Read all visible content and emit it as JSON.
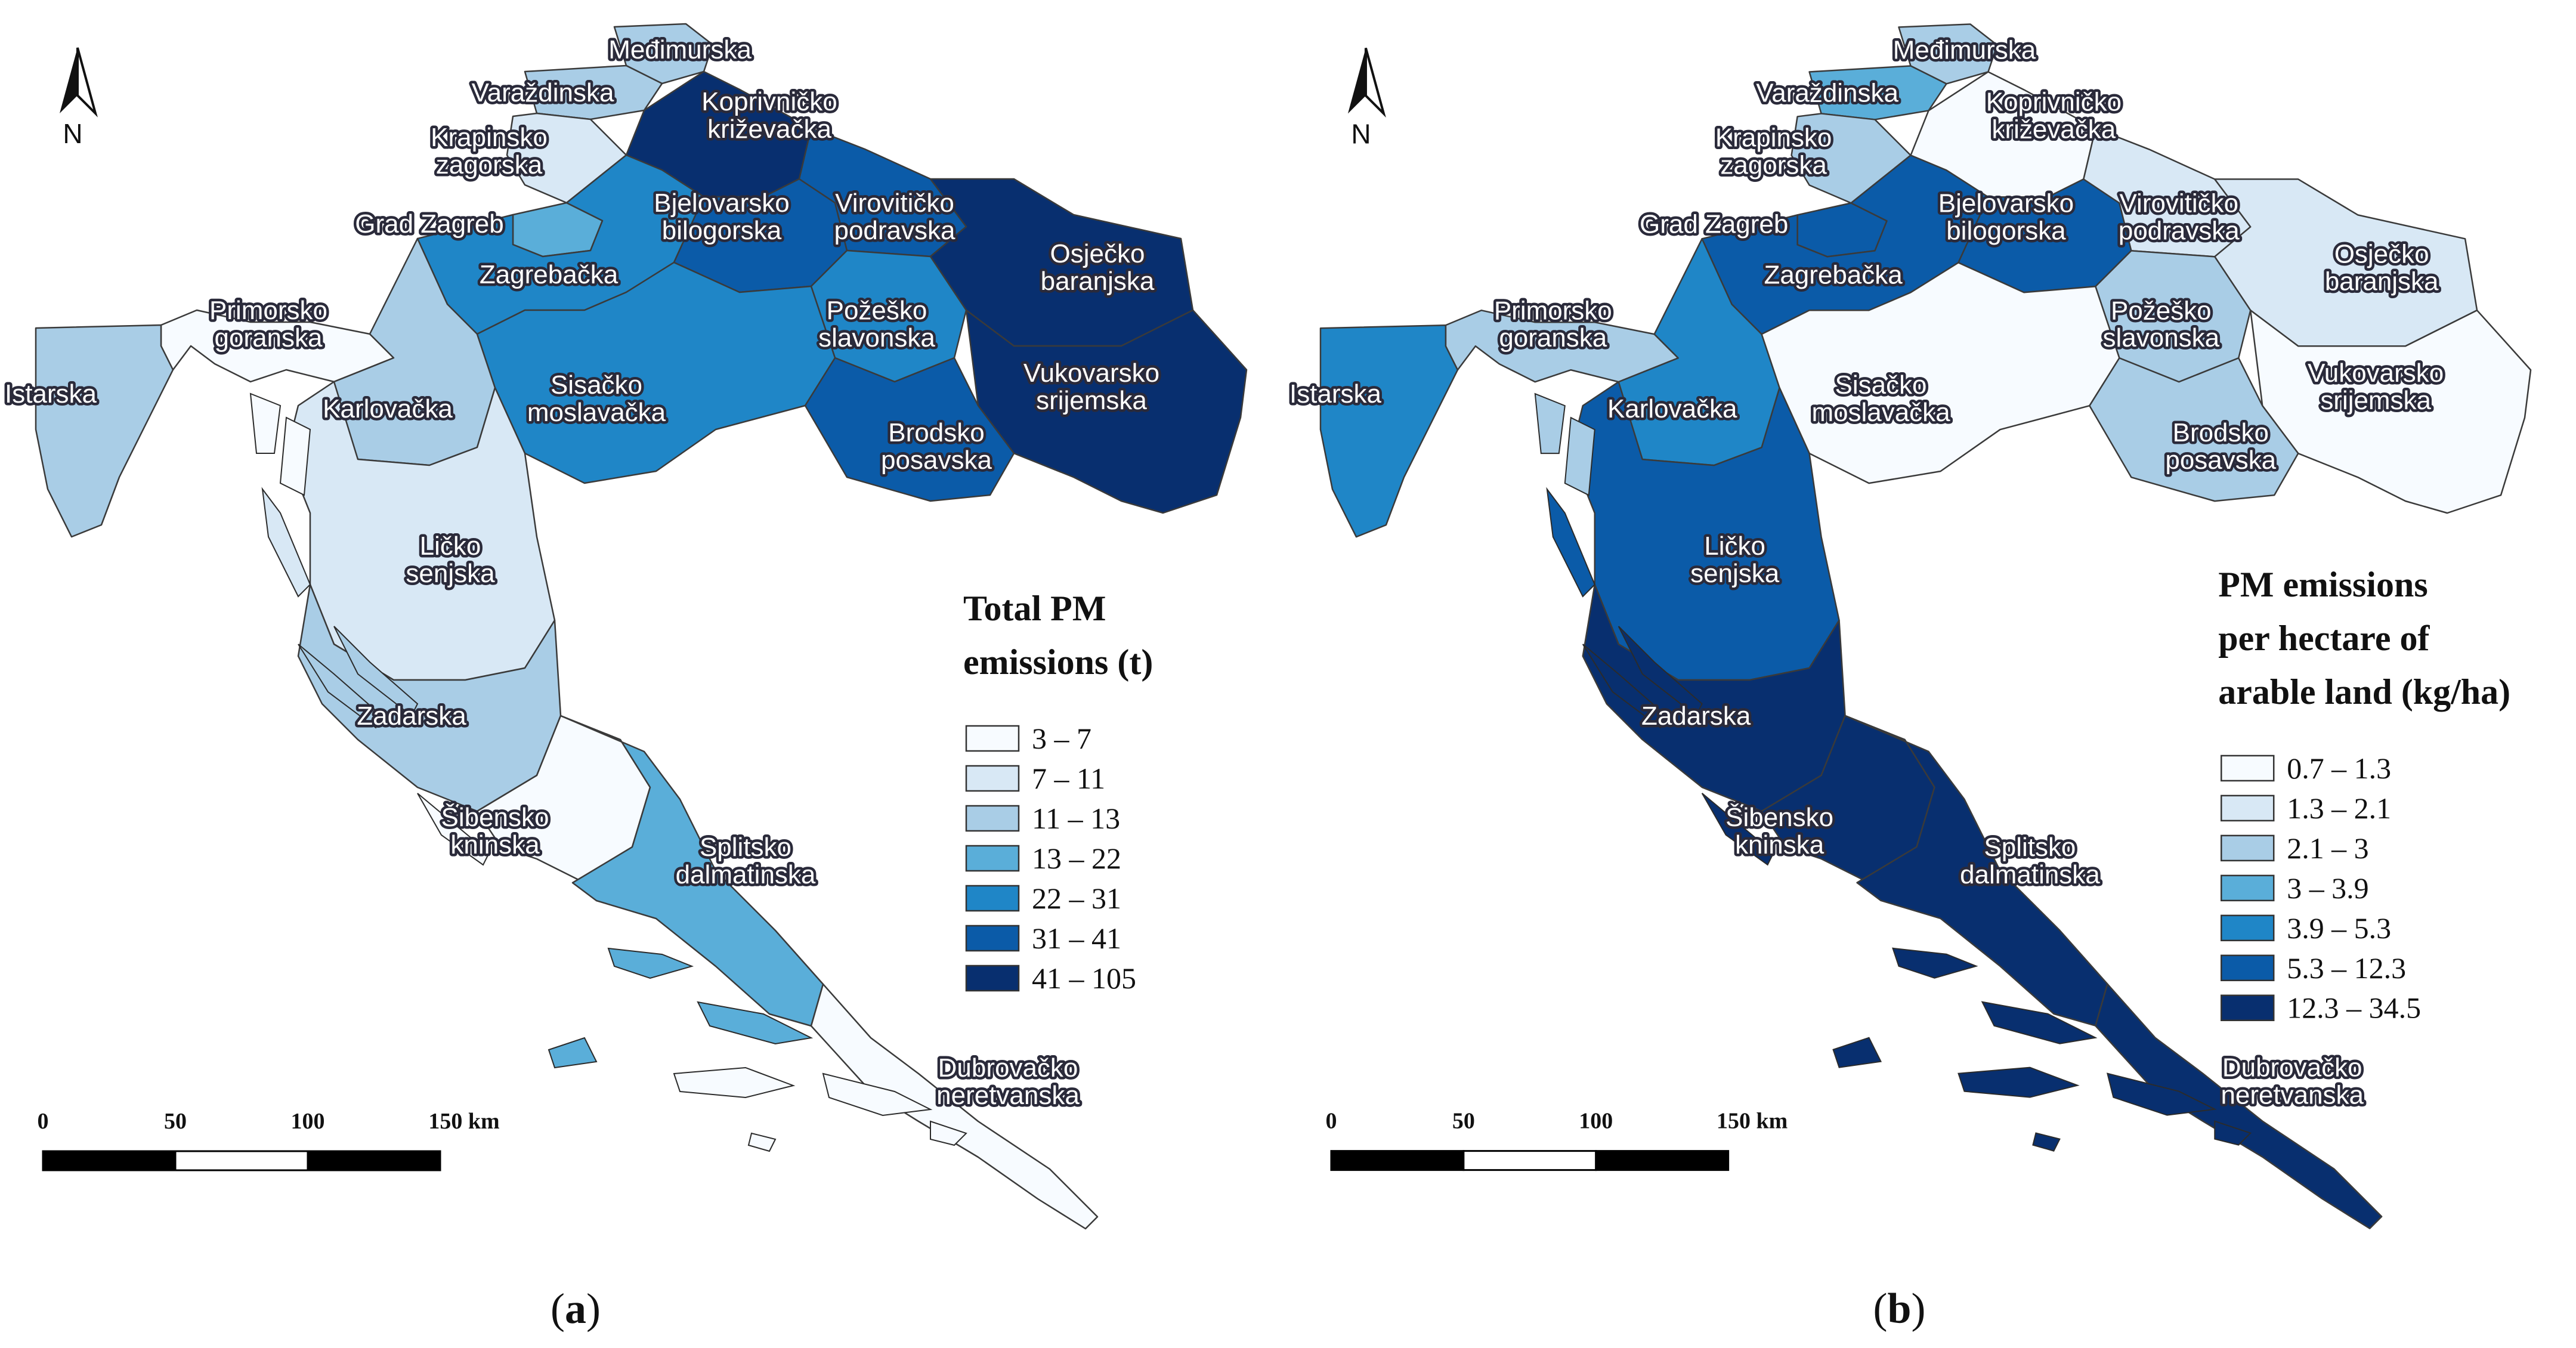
{
  "colors": {
    "ramp": [
      "#f7fbff",
      "#d8e8f5",
      "#a9cde6",
      "#5aaed9",
      "#1f86c7",
      "#0b5ba8",
      "#082f6f"
    ],
    "outline": "#3a3a3a"
  },
  "north_arrow": {
    "letter": "N"
  },
  "scale_bar": {
    "ticks": [
      "0",
      "50",
      "100",
      "150 km"
    ]
  },
  "regions": [
    "Međimurska",
    "Varaždinska",
    "Koprivničko\nkriževačka",
    "Krapinsko\nzagorska",
    "Grad Zagreb",
    "Zagrebačka",
    "Bjelovarsko\nbilogorska",
    "Virovitičko\npodravska",
    "Osječko\nbaranjska",
    "Primorsko\ngoranska",
    "Požeško\nslavonska",
    "Istarska",
    "Karlovačka",
    "Sisačko\nmoslavačka",
    "Vukovarsko\nsrijemska",
    "Brodsko\nposavska",
    "Ličko\nsenjska",
    "Zadarska",
    "Šibensko\nkninska",
    "Splitsko\ndalmatinska",
    "Dubrovačko\nneretvanska"
  ],
  "panels": [
    {
      "caption_letter": "a",
      "legend": {
        "title_lines": [
          "Total PM",
          "emissions (t)"
        ],
        "classes": [
          "3 – 7",
          "7 – 11",
          "11 – 13",
          "13 – 22",
          "22 – 31",
          "31 – 41",
          "41 – 105"
        ]
      },
      "region_class": {
        "Međimurska": 2,
        "Varaždinska": 2,
        "Koprivničko\nkriževačka": 6,
        "Krapinsko\nzagorska": 1,
        "Grad Zagreb": 3,
        "Zagrebačka": 4,
        "Bjelovarsko\nbilogorska": 5,
        "Virovitičko\npodravska": 5,
        "Osječko\nbaranjska": 6,
        "Primorsko\ngoranska": 0,
        "Požeško\nslavonska": 4,
        "Istarska": 2,
        "Karlovačka": 2,
        "Sisačko\nmoslavačka": 4,
        "Vukovarsko\nsrijemska": 6,
        "Brodsko\nposavska": 5,
        "Ličko\nsenjska": 1,
        "Zadarska": 2,
        "Šibensko\nkninska": 0,
        "Splitsko\ndalmatinska": 3,
        "Dubrovačko\nneretvanska": 0
      }
    },
    {
      "caption_letter": "b",
      "legend": {
        "title_lines": [
          "PM emissions",
          "per hectare of",
          "arable land (kg/ha)"
        ],
        "classes": [
          "0.7 – 1.3",
          "1.3 – 2.1",
          "2.1 – 3",
          "3 – 3.9",
          "3.9 – 5.3",
          "5.3 – 12.3",
          "12.3 – 34.5"
        ]
      },
      "region_class": {
        "Međimurska": 2,
        "Varaždinska": 3,
        "Koprivničko\nkriževačka": 0,
        "Krapinsko\nzagorska": 2,
        "Grad Zagreb": 5,
        "Zagrebačka": 5,
        "Bjelovarsko\nbilogorska": 5,
        "Virovitičko\npodravska": 1,
        "Osječko\nbaranjska": 1,
        "Primorsko\ngoranska": 2,
        "Požeško\nslavonska": 2,
        "Istarska": 4,
        "Karlovačka": 4,
        "Sisačko\nmoslavačka": 0,
        "Vukovarsko\nsrijemska": 0,
        "Brodsko\nposavska": 2,
        "Ličko\nsenjska": 5,
        "Zadarska": 6,
        "Šibensko\nkninska": 6,
        "Splitsko\ndalmatinska": 6,
        "Dubrovačko\nneretvanska": 6
      }
    }
  ]
}
